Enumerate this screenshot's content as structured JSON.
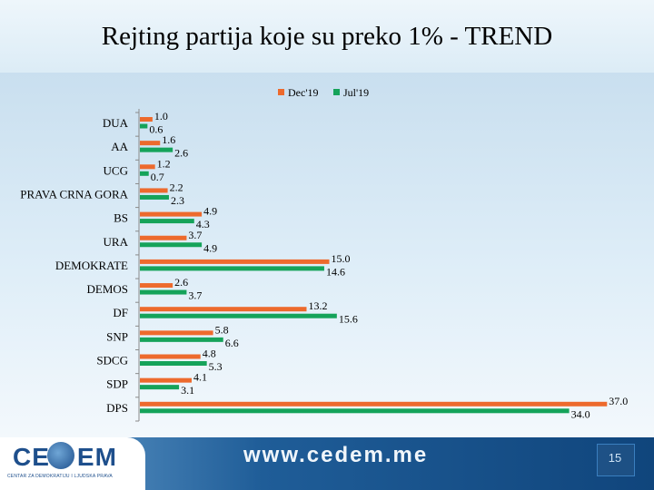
{
  "title": "Rejting partija koje su preko 1% - TREND",
  "footer": {
    "logo_left": "CE",
    "logo_right": "EM",
    "logo_sub": "CENTAR ZA DEMOKRATIJU I LJUDSKA PRAVA",
    "website": "www.cedem.me",
    "page_number": "15"
  },
  "colors": {
    "dec19": "#ed6a2d",
    "jul19": "#15a35a",
    "axis": "#8a8a8a"
  },
  "chart_data": {
    "type": "bar",
    "orientation": "horizontal",
    "categories": [
      "DUA",
      "AA",
      "UCG",
      "PRAVA CRNA GORA",
      "BS",
      "URA",
      "DEMOKRATE",
      "DEMOS",
      "DF",
      "SNP",
      "SDCG",
      "SDP",
      "DPS"
    ],
    "series": [
      {
        "name": "Dec'19",
        "values": [
          1.0,
          1.6,
          1.2,
          2.2,
          4.9,
          3.7,
          15.0,
          2.6,
          13.2,
          5.8,
          4.8,
          4.1,
          37.0
        ]
      },
      {
        "name": "Jul'19",
        "values": [
          0.6,
          2.6,
          0.7,
          2.3,
          4.3,
          4.9,
          14.6,
          3.7,
          15.6,
          6.6,
          5.3,
          3.1,
          34.0
        ]
      }
    ],
    "data_labels": true,
    "legend": "top-center"
  }
}
